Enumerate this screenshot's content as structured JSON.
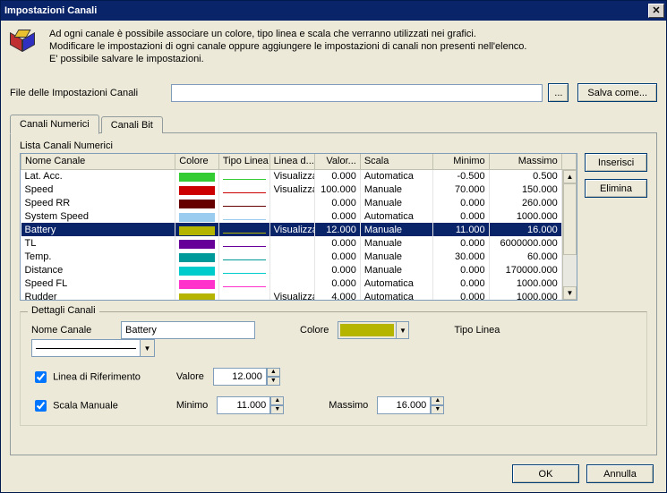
{
  "window": {
    "title": "Impostazioni Canali"
  },
  "intro": {
    "line1": "Ad ogni canale è possibile associare un colore, tipo linea e scala che verranno utilizzati nei grafici.",
    "line2": "Modificare le impostazioni di ogni canale oppure aggiungere le impostazioni di canali non presenti nell'elenco.",
    "line3": "E' possibile salvare le impostazioni."
  },
  "fileRow": {
    "label": "File delle Impostazioni Canali",
    "path": "",
    "browse": "...",
    "saveAs": "Salva come..."
  },
  "tabs": {
    "numeric": "Canali Numerici",
    "bit": "Canali Bit"
  },
  "listLabel": "Lista Canali Numerici",
  "columns": {
    "name": "Nome Canale",
    "color": "Colore",
    "lineType": "Tipo Linea",
    "lineD": "Linea d...",
    "value": "Valor...",
    "scale": "Scala",
    "min": "Minimo",
    "max": "Massimo"
  },
  "rows": [
    {
      "name": "Lat. Acc.",
      "color": "#33cc33",
      "lineColor": "#33cc33",
      "lineD": "Visualizza",
      "value": "0.000",
      "scale": "Automatica",
      "min": "-0.500",
      "max": "0.500",
      "selected": false
    },
    {
      "name": "Speed",
      "color": "#cc0000",
      "lineColor": "#cc0000",
      "lineD": "Visualizza",
      "value": "100.000",
      "scale": "Manuale",
      "min": "70.000",
      "max": "150.000",
      "selected": false
    },
    {
      "name": "Speed RR",
      "color": "#660000",
      "lineColor": "#660000",
      "lineD": "",
      "value": "0.000",
      "scale": "Manuale",
      "min": "0.000",
      "max": "260.000",
      "selected": false
    },
    {
      "name": "System Speed",
      "color": "#99ccee",
      "lineColor": "#99ccee",
      "lineD": "",
      "value": "0.000",
      "scale": "Automatica",
      "min": "0.000",
      "max": "1000.000",
      "selected": false
    },
    {
      "name": "Battery",
      "color": "#b5b500",
      "lineColor": "#b5b500",
      "lineD": "Visualizza",
      "value": "12.000",
      "scale": "Manuale",
      "min": "11.000",
      "max": "16.000",
      "selected": true
    },
    {
      "name": "TL",
      "color": "#660099",
      "lineColor": "#660099",
      "lineD": "",
      "value": "0.000",
      "scale": "Manuale",
      "min": "0.000",
      "max": "6000000.000",
      "selected": false
    },
    {
      "name": "Temp.",
      "color": "#009999",
      "lineColor": "#009999",
      "lineD": "",
      "value": "0.000",
      "scale": "Manuale",
      "min": "30.000",
      "max": "60.000",
      "selected": false
    },
    {
      "name": "Distance",
      "color": "#00cccc",
      "lineColor": "#00cccc",
      "lineD": "",
      "value": "0.000",
      "scale": "Manuale",
      "min": "0.000",
      "max": "170000.000",
      "selected": false
    },
    {
      "name": "Speed FL",
      "color": "#ff33cc",
      "lineColor": "#ff33cc",
      "lineD": "",
      "value": "0.000",
      "scale": "Automatica",
      "min": "0.000",
      "max": "1000.000",
      "selected": false
    },
    {
      "name": "Rudder",
      "color": "#b5b500",
      "lineColor": "#b5b500",
      "lineD": "Visualizza",
      "value": "4.000",
      "scale": "Automatica",
      "min": "0.000",
      "max": "1000.000",
      "selected": false
    }
  ],
  "sideButtons": {
    "insert": "Inserisci",
    "delete": "Elimina"
  },
  "details": {
    "title": "Dettagli Canali",
    "nameLabel": "Nome Canale",
    "nameValue": "Battery",
    "colorLabel": "Colore",
    "colorValue": "#b5b500",
    "lineTypeLabel": "Tipo Linea",
    "refLineLabel": "Linea di Riferimento",
    "refLineChecked": true,
    "valueLabel": "Valore",
    "valueValue": "12.000",
    "manualScaleLabel": "Scala Manuale",
    "manualScaleChecked": true,
    "minLabel": "Minimo",
    "minValue": "11.000",
    "maxLabel": "Massimo",
    "maxValue": "16.000"
  },
  "dialogButtons": {
    "ok": "OK",
    "cancel": "Annulla"
  },
  "colWidths": {
    "name": 170,
    "color": 48,
    "lineType": 56,
    "lineD": 50,
    "value": 50,
    "scale": 80,
    "min": 62,
    "max": 80
  }
}
